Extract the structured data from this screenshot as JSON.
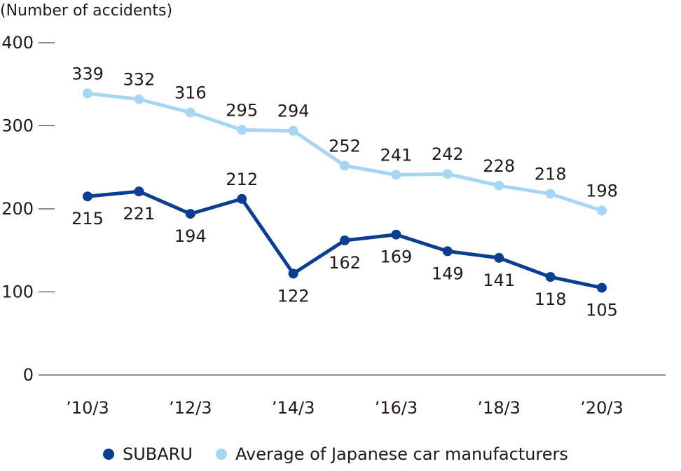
{
  "chart_data": {
    "type": "line",
    "title": "",
    "ylabel": "(Number of accidents)",
    "xlabel": "",
    "ylim": [
      0,
      400
    ],
    "yticks": [
      0,
      100,
      200,
      300,
      400
    ],
    "x": [
      "2010/3",
      "2011/3",
      "2012/3",
      "2013/3",
      "2014/3",
      "2015/3",
      "2016/3",
      "2017/3",
      "2018/3",
      "2019/3",
      "2020/3"
    ],
    "x_tick_labels": [
      "’10/3",
      "",
      "’12/3",
      "",
      "’14/3",
      "",
      "’16/3",
      "",
      "’18/3",
      "",
      "’20/3"
    ],
    "series": [
      {
        "name": "SUBARU",
        "color": "#0b3e91",
        "values": [
          215,
          221,
          194,
          212,
          122,
          162,
          169,
          149,
          141,
          118,
          105
        ],
        "label_position": [
          "below",
          "below",
          "below",
          "above",
          "below",
          "below",
          "below",
          "below",
          "below",
          "below",
          "below"
        ]
      },
      {
        "name": "Average of Japanese car manufacturers",
        "color": "#a5d6f3",
        "values": [
          339,
          332,
          316,
          295,
          294,
          252,
          241,
          242,
          228,
          218,
          198
        ],
        "label_position": [
          "above",
          "above",
          "above",
          "above",
          "above",
          "above",
          "above",
          "above",
          "above",
          "above",
          "above"
        ]
      }
    ],
    "grid": false,
    "legend_position": "bottom"
  }
}
